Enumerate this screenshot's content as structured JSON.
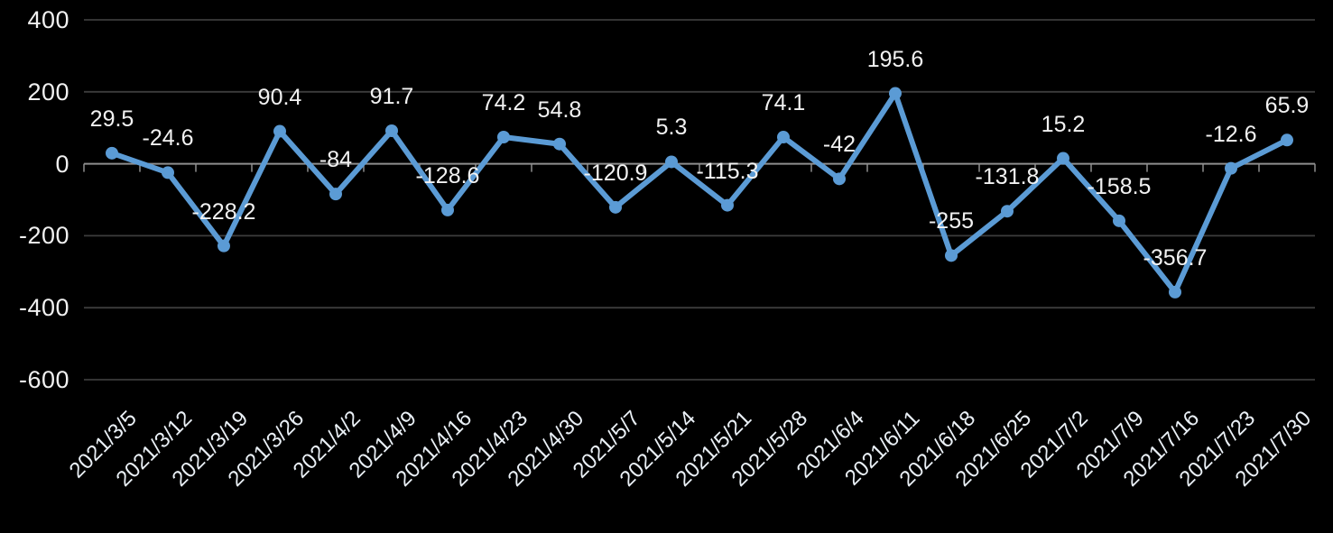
{
  "chart_data": {
    "type": "line",
    "title": "",
    "xlabel": "",
    "ylabel": "",
    "legend": "none",
    "grid": true,
    "marker": "circle",
    "data_label_position": "above",
    "x_label_rotation": 45,
    "ylim": [
      -600,
      400
    ],
    "yticks": [
      400,
      200,
      0,
      -200,
      -400,
      -600
    ],
    "categories": [
      "2021/3/5",
      "2021/3/12",
      "2021/3/19",
      "2021/3/26",
      "2021/4/2",
      "2021/4/9",
      "2021/4/16",
      "2021/4/23",
      "2021/4/30",
      "2021/5/7",
      "2021/5/14",
      "2021/5/21",
      "2021/5/28",
      "2021/6/4",
      "2021/6/11",
      "2021/6/18",
      "2021/6/25",
      "2021/7/2",
      "2021/7/9",
      "2021/7/16",
      "2021/7/23",
      "2021/7/30"
    ],
    "values": [
      29.5,
      -24.6,
      -228.2,
      90.4,
      -84,
      91.7,
      -128.6,
      74.2,
      54.8,
      -120.9,
      5.3,
      -115.3,
      74.1,
      -42,
      195.6,
      -255,
      -131.8,
      15.2,
      -158.5,
      -356.7,
      -12.6,
      65.9
    ],
    "data_labels": [
      "29.5",
      "-24.6",
      "-228.2",
      "90.4",
      "-84",
      "91.7",
      "-128.6",
      "74.2",
      "54.8",
      "-120.9",
      "5.3",
      "-115.3",
      "74.1",
      "-42",
      "195.6",
      "-255",
      "-131.8",
      "15.2",
      "-158.5",
      "-356.7",
      "-12.6",
      "65.9"
    ]
  },
  "colors": {
    "background": "#000000",
    "line": "#5B9BD5",
    "marker": "#5B9BD5",
    "gridline": "#3C3C3C",
    "axis_line": "#8E8E8E",
    "tick": "#8E8E8E",
    "axis_text": "#F0F0F0",
    "data_label_text": "#F2F2F2"
  }
}
